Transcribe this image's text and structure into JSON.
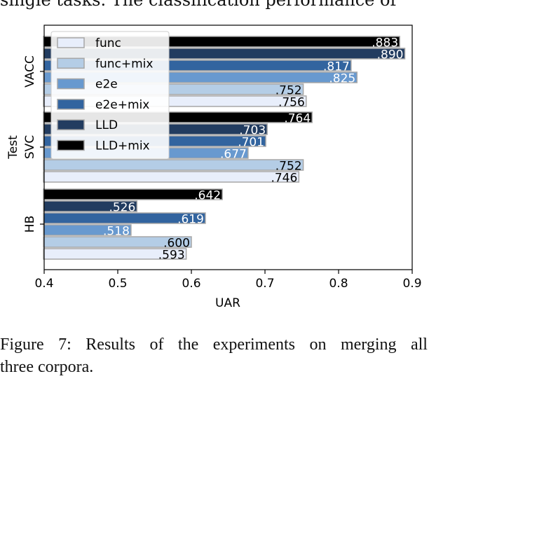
{
  "top_text": "single tasks. The classification performance of",
  "caption": {
    "line1_words": [
      "Figure",
      "7:",
      "Results",
      "of",
      "the",
      "experiments",
      "on",
      "merging",
      "all"
    ],
    "line2": "three corpora."
  },
  "colors": {
    "func": "#e8eefb",
    "func+mix": "#b4cde6",
    "e2e": "#6899cf",
    "e2e+mix": "#32649f",
    "LLD": "#223c60",
    "LLD+mix": "#000000",
    "bar_edge": "#a7a7a7"
  },
  "chart_data": {
    "type": "bar",
    "orientation": "horizontal",
    "categories": [
      "HB",
      "SVC",
      "VACC"
    ],
    "ylabel": "Test",
    "xlabel": "UAR",
    "xlim": [
      0.4,
      0.9
    ],
    "xticks": [
      "0.4",
      "0.5",
      "0.6",
      "0.7",
      "0.8",
      "0.9"
    ],
    "grid": false,
    "legend_position": "top-left",
    "series": [
      {
        "name": "func",
        "values": [
          0.593,
          0.746,
          0.756
        ],
        "labels": [
          ".593",
          ".746",
          ".756"
        ]
      },
      {
        "name": "func+mix",
        "values": [
          0.6,
          0.752,
          0.752
        ],
        "labels": [
          ".600",
          ".752",
          ".752"
        ]
      },
      {
        "name": "e2e",
        "values": [
          0.518,
          0.677,
          0.825
        ],
        "labels": [
          ".518",
          ".677",
          ".825"
        ]
      },
      {
        "name": "e2e+mix",
        "values": [
          0.619,
          0.701,
          0.817
        ],
        "labels": [
          ".619",
          ".701",
          ".817"
        ]
      },
      {
        "name": "LLD",
        "values": [
          0.526,
          0.703,
          0.89
        ],
        "labels": [
          ".526",
          ".703",
          ".890"
        ]
      },
      {
        "name": "LLD+mix",
        "values": [
          0.642,
          0.764,
          0.883
        ],
        "labels": [
          ".642",
          ".764",
          ".883"
        ]
      }
    ]
  }
}
